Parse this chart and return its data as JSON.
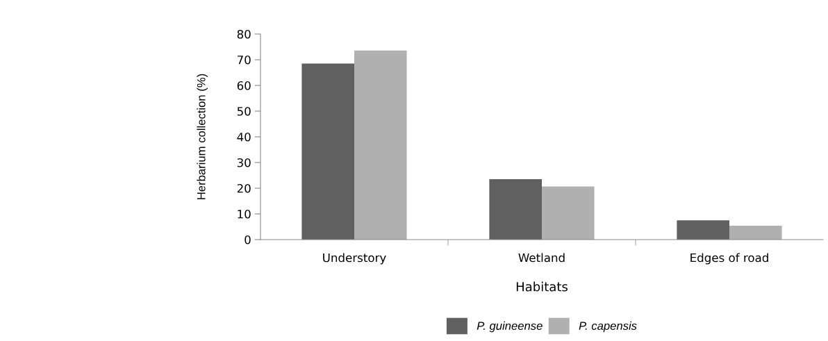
{
  "chart_data": {
    "type": "bar",
    "xlabel": "Habitats",
    "ylabel": "Herbarium collection (%)",
    "categories": [
      "Understory",
      "Wetland",
      "Edges of road"
    ],
    "series": [
      {
        "name": "P. guineense",
        "color": "#606060",
        "values": [
          68.5,
          23.5,
          7.5
        ]
      },
      {
        "name": "P. capensis",
        "color": "#b0b0b0",
        "values": [
          73.6,
          20.7,
          5.4
        ]
      }
    ],
    "ylim": [
      0,
      80
    ],
    "yticks": [
      0,
      10,
      20,
      30,
      40,
      50,
      60,
      70,
      80
    ],
    "grid": false,
    "legend": "bottom"
  }
}
